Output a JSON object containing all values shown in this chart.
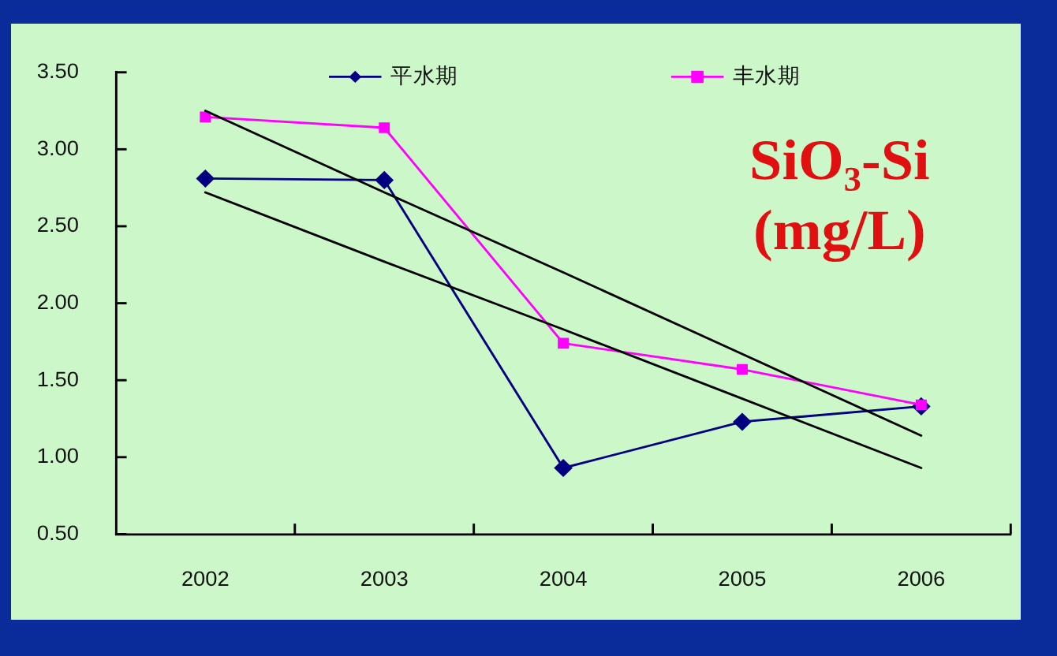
{
  "chart_data": {
    "type": "line",
    "x": [
      2002,
      2003,
      2004,
      2005,
      2006
    ],
    "series": [
      {
        "name": "平水期",
        "color": "#000080",
        "marker": "diamond",
        "values": [
          2.81,
          2.8,
          0.93,
          1.23,
          1.33
        ]
      },
      {
        "name": "丰水期",
        "color": "#ff00ff",
        "marker": "square",
        "values": [
          3.21,
          3.14,
          1.74,
          1.57,
          1.34
        ]
      },
      {
        "color": "#000000",
        "marker": "none",
        "values": [
          3.25,
          2.72,
          2.2,
          1.67,
          1.14
        ]
      },
      {
        "color": "#000000",
        "marker": "none",
        "values": [
          2.72,
          2.27,
          1.83,
          1.38,
          0.93
        ]
      }
    ],
    "xlim": [
      2001.5,
      2006.5
    ],
    "xticks": [
      2002,
      {
        "value": 2002.5,
        "label": null
      },
      2003,
      {
        "value": 2003.5,
        "label": null
      },
      2004,
      {
        "value": 2004.5,
        "label": null
      },
      2005,
      {
        "value": 2005.5,
        "label": null
      },
      2006,
      {
        "value": 2006.5,
        "label": null
      }
    ],
    "ylim": [
      0.5,
      3.5
    ],
    "yticks": [
      {
        "value": 0.5,
        "label": "0.50"
      },
      {
        "value": 1,
        "label": "1.00"
      },
      {
        "value": 1.5,
        "label": "1.50"
      },
      {
        "value": 2,
        "label": "2.00"
      },
      {
        "value": 2.5,
        "label": "2.50"
      },
      {
        "value": 3,
        "label": "3.00"
      },
      {
        "value": 3.5,
        "label": "3.50"
      }
    ],
    "legend": "top",
    "annotations": [
      "SiO₃-Si (mg/L)"
    ]
  }
}
